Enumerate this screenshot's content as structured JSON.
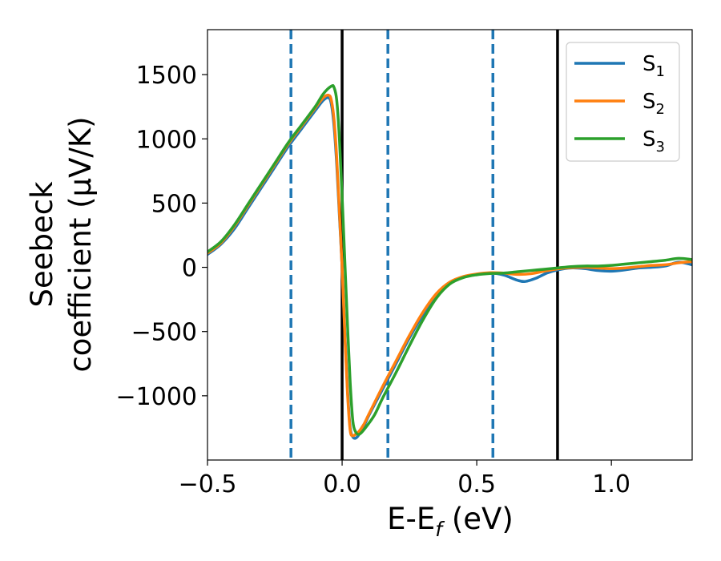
{
  "chart_data": {
    "type": "line",
    "xlabel": "E-E",
    "xlabel_sub": "f",
    "xlabel_tail": " (eV)",
    "ylabel_line1": "Seebeck",
    "ylabel_line2": "coefficient  (μV/K)",
    "xlim": [
      -0.5,
      1.3
    ],
    "ylim": [
      -1500,
      1850
    ],
    "xticks": [
      -0.5,
      0.0,
      0.5,
      1.0
    ],
    "xtick_labels": [
      "−0.5",
      "0.0",
      "0.5",
      "1.0"
    ],
    "yticks": [
      1500,
      1000,
      500,
      0,
      -500,
      -1000
    ],
    "ytick_labels": [
      "1500",
      "1000",
      "500",
      "0",
      "−500",
      "−1000"
    ],
    "legend_position": "top-right",
    "vlines": [
      {
        "x": -0.19,
        "style": "dashed",
        "color": "#1f77b4"
      },
      {
        "x": 0.0,
        "style": "solid",
        "color": "#000000"
      },
      {
        "x": 0.17,
        "style": "dashed",
        "color": "#1f77b4"
      },
      {
        "x": 0.56,
        "style": "dashed",
        "color": "#1f77b4"
      },
      {
        "x": 0.8,
        "style": "solid",
        "color": "#000000"
      }
    ],
    "series": [
      {
        "name": "S",
        "sub": "1",
        "color": "#1f77b4",
        "x": [
          -0.5,
          -0.45,
          -0.4,
          -0.35,
          -0.3,
          -0.25,
          -0.2,
          -0.15,
          -0.1,
          -0.07,
          -0.05,
          -0.04,
          -0.03,
          -0.02,
          -0.01,
          0.0,
          0.01,
          0.02,
          0.03,
          0.04,
          0.05,
          0.06,
          0.08,
          0.1,
          0.15,
          0.2,
          0.25,
          0.3,
          0.35,
          0.4,
          0.45,
          0.5,
          0.55,
          0.6,
          0.65,
          0.68,
          0.72,
          0.76,
          0.8,
          0.85,
          0.9,
          0.95,
          1.0,
          1.05,
          1.1,
          1.15,
          1.2,
          1.25,
          1.3
        ],
        "y": [
          100,
          180,
          300,
          460,
          620,
          780,
          940,
          1080,
          1220,
          1300,
          1320,
          1270,
          1100,
          800,
          400,
          0,
          -500,
          -950,
          -1250,
          -1320,
          -1330,
          -1310,
          -1240,
          -1150,
          -950,
          -750,
          -550,
          -370,
          -220,
          -120,
          -75,
          -55,
          -45,
          -60,
          -100,
          -110,
          -85,
          -45,
          -20,
          -5,
          -10,
          -25,
          -30,
          -20,
          -5,
          0,
          10,
          40,
          20
        ]
      },
      {
        "name": "S",
        "sub": "2",
        "color": "#ff7f0e",
        "x": [
          -0.5,
          -0.45,
          -0.4,
          -0.35,
          -0.3,
          -0.25,
          -0.2,
          -0.15,
          -0.1,
          -0.07,
          -0.05,
          -0.04,
          -0.03,
          -0.02,
          -0.01,
          0.0,
          0.01,
          0.02,
          0.03,
          0.04,
          0.05,
          0.06,
          0.08,
          0.1,
          0.15,
          0.2,
          0.25,
          0.3,
          0.35,
          0.4,
          0.45,
          0.5,
          0.55,
          0.6,
          0.65,
          0.7,
          0.75,
          0.8,
          0.85,
          0.9,
          0.95,
          1.0,
          1.05,
          1.1,
          1.15,
          1.2,
          1.25,
          1.3
        ],
        "y": [
          110,
          190,
          320,
          480,
          640,
          800,
          960,
          1100,
          1240,
          1320,
          1340,
          1300,
          1150,
          850,
          430,
          0,
          -520,
          -980,
          -1270,
          -1310,
          -1300,
          -1285,
          -1225,
          -1140,
          -930,
          -730,
          -530,
          -350,
          -205,
          -115,
          -72,
          -52,
          -42,
          -45,
          -55,
          -50,
          -30,
          -12,
          -2,
          0,
          -5,
          -10,
          -5,
          5,
          15,
          20,
          35,
          45
        ]
      },
      {
        "name": "S",
        "sub": "3",
        "color": "#2ca02c",
        "x": [
          -0.5,
          -0.45,
          -0.4,
          -0.35,
          -0.3,
          -0.25,
          -0.2,
          -0.15,
          -0.1,
          -0.07,
          -0.04,
          -0.03,
          -0.02,
          -0.01,
          0.0,
          0.01,
          0.02,
          0.03,
          0.04,
          0.05,
          0.06,
          0.07,
          0.09,
          0.12,
          0.15,
          0.2,
          0.25,
          0.3,
          0.35,
          0.4,
          0.45,
          0.5,
          0.55,
          0.6,
          0.65,
          0.7,
          0.75,
          0.8,
          0.85,
          0.9,
          0.95,
          1.0,
          1.05,
          1.1,
          1.15,
          1.2,
          1.25,
          1.3
        ],
        "y": [
          120,
          200,
          330,
          490,
          650,
          810,
          970,
          1110,
          1250,
          1350,
          1410,
          1400,
          1300,
          1000,
          550,
          50,
          -450,
          -900,
          -1200,
          -1280,
          -1300,
          -1290,
          -1240,
          -1150,
          -1020,
          -820,
          -610,
          -410,
          -240,
          -130,
          -80,
          -58,
          -48,
          -45,
          -35,
          -25,
          -15,
          -5,
          5,
          10,
          10,
          15,
          25,
          35,
          45,
          55,
          70,
          60
        ]
      }
    ]
  }
}
